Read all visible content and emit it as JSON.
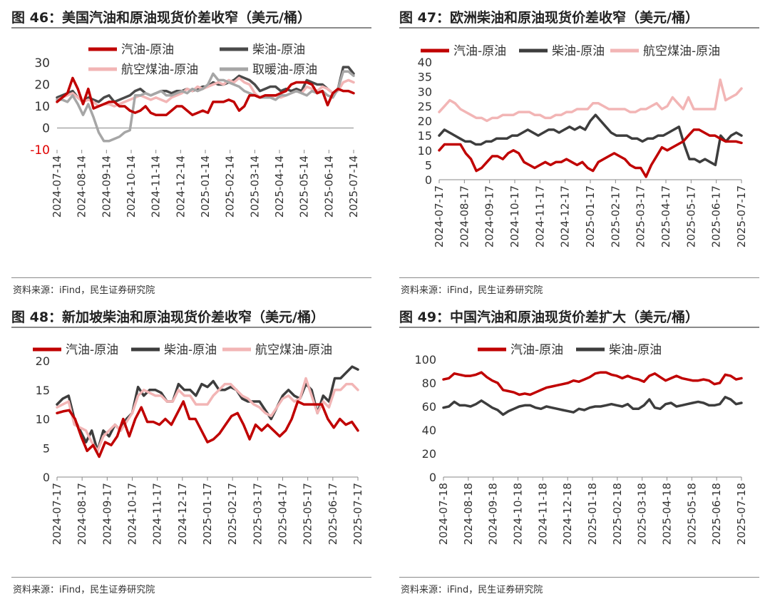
{
  "source_text": "资料来源：iFind，民生证券研究院",
  "chart_data": [
    {
      "type": "line",
      "title": "图 46：美国汽油和原油现货价差收窄（美元/桶）",
      "ylim": [
        -10,
        30
      ],
      "yticks": [
        -10,
        0,
        10,
        20,
        30
      ],
      "red_negative_ticks": true,
      "x_tick_labels": [
        "2024-07-14",
        "2024-08-14",
        "2024-09-14",
        "2024-10-14",
        "2024-11-14",
        "2024-12-14",
        "2025-01-14",
        "2025-02-14",
        "2025-03-14",
        "2025-04-14",
        "2025-05-14",
        "2025-06-14",
        "2025-07-14"
      ],
      "legend": {
        "rows": [
          [
            0,
            1
          ],
          [
            2,
            3
          ]
        ]
      },
      "series": [
        {
          "name": "汽油-原油",
          "color": "#c00000",
          "values": [
            12,
            14,
            16,
            23,
            18,
            11,
            18,
            9,
            10,
            11,
            12,
            12,
            10,
            10,
            8,
            7,
            8,
            10,
            7,
            6,
            6,
            6,
            8,
            10,
            10,
            8,
            6,
            7,
            8,
            7,
            12,
            12,
            12,
            13,
            12,
            8,
            10,
            15,
            15,
            14,
            15,
            15,
            15,
            16,
            17,
            20,
            21,
            21,
            21,
            20,
            16,
            17,
            10.5,
            16,
            18,
            17,
            17,
            16
          ]
        },
        {
          "name": "柴油-原油",
          "color": "#4a4a4a",
          "values": [
            14,
            15,
            16,
            17,
            14,
            12,
            14,
            13,
            12,
            14,
            15,
            12,
            13,
            14,
            15,
            17,
            18,
            16,
            15,
            16,
            17,
            17,
            16,
            17,
            17,
            18,
            17,
            18,
            19,
            19,
            21,
            20,
            20,
            21,
            22,
            24,
            23,
            22,
            20,
            17,
            18,
            19,
            19,
            17,
            18,
            17,
            18,
            17,
            22,
            21,
            20,
            20,
            18,
            16,
            18,
            28,
            28,
            25
          ]
        },
        {
          "name": "航空煤油-原油",
          "color": "#f2b5b5",
          "values": [
            13,
            14,
            15,
            16,
            14,
            12,
            13,
            12,
            10,
            11,
            11,
            10,
            11,
            12,
            13,
            14,
            15,
            14,
            13,
            14,
            13,
            12,
            14,
            15,
            16,
            18,
            17,
            19,
            18,
            19,
            20,
            21,
            20,
            22,
            21,
            23,
            21,
            20,
            16,
            14,
            14,
            14,
            15,
            14,
            15,
            16,
            17,
            16,
            19,
            18,
            17,
            19,
            18,
            16,
            17,
            21,
            22,
            21
          ]
        },
        {
          "name": "取暖油-原油",
          "color": "#a6a6a6",
          "values": [
            13,
            13,
            12,
            15,
            11,
            6,
            11,
            5,
            -2,
            -6,
            -6,
            -5,
            -4,
            -2,
            -1,
            15,
            15,
            16,
            15,
            16,
            17,
            15,
            15,
            16,
            17,
            16,
            18,
            17,
            18,
            20,
            25,
            22,
            22,
            21,
            20,
            19,
            17,
            16,
            15,
            14,
            14,
            14,
            13,
            15,
            15,
            16,
            17,
            16,
            15,
            17,
            16,
            17,
            15,
            14,
            18,
            26,
            26,
            24
          ]
        }
      ]
    },
    {
      "type": "line",
      "title": "图 47：欧洲柴油和原油现货价差收窄（美元/桶）",
      "ylim": [
        0,
        40
      ],
      "yticks": [
        0,
        5,
        10,
        15,
        20,
        25,
        30,
        35,
        40
      ],
      "x_tick_labels": [
        "2024-07-17",
        "2024-08-17",
        "2024-09-17",
        "2024-10-17",
        "2024-11-17",
        "2024-12-17",
        "2025-01-17",
        "2025-02-17",
        "2025-03-17",
        "2025-04-17",
        "2025-05-17",
        "2025-06-17",
        "2025-07-17"
      ],
      "legend": {
        "rows": [
          [
            0,
            1,
            2
          ]
        ]
      },
      "series": [
        {
          "name": "汽油-原油",
          "color": "#c00000",
          "values": [
            10,
            12,
            12,
            12,
            12,
            9,
            7,
            3,
            4,
            6,
            8,
            8,
            7,
            9,
            10,
            9,
            6,
            5,
            4,
            5,
            6,
            5,
            6,
            6,
            7,
            6,
            5,
            6,
            4,
            3,
            6,
            7,
            8,
            9,
            8,
            7,
            5,
            4,
            4,
            1,
            5,
            8,
            11,
            10,
            11,
            12,
            13,
            15,
            17,
            17,
            16,
            15,
            15,
            14,
            13,
            13,
            13,
            12.5
          ]
        },
        {
          "name": "柴油-原油",
          "color": "#3d3d3d",
          "values": [
            15,
            17,
            16,
            15,
            14,
            13,
            13,
            12,
            12,
            13,
            13,
            14,
            14,
            14,
            15,
            15,
            16,
            17,
            16,
            15,
            16,
            17,
            17,
            16,
            17,
            18,
            17,
            18,
            17,
            20,
            22,
            20,
            18,
            16,
            15,
            15,
            15,
            14,
            14,
            13,
            14,
            14,
            15,
            15,
            16,
            17,
            18,
            12,
            7,
            7,
            6,
            7,
            6,
            5,
            15,
            13,
            15,
            16,
            15
          ]
        },
        {
          "name": "航空煤油-原油",
          "color": "#f2b5b5",
          "values": [
            23,
            25,
            27,
            26,
            24,
            23,
            22,
            21,
            21,
            20,
            21,
            21,
            22,
            22,
            22,
            23,
            23,
            23,
            22,
            22,
            21,
            21,
            22,
            22,
            23,
            23,
            24,
            24,
            24,
            26,
            26,
            25,
            24,
            24,
            24,
            24,
            23,
            23,
            24,
            24,
            25,
            26,
            24,
            25,
            28,
            26,
            24,
            28,
            24,
            24,
            24,
            24,
            24,
            34,
            27,
            28,
            29,
            31
          ]
        }
      ]
    },
    {
      "type": "line",
      "title": "图 48：新加坡柴油和原油现货价差收窄（美元/桶）",
      "ylim": [
        0,
        20
      ],
      "yticks": [
        0,
        5,
        10,
        15,
        20
      ],
      "x_tick_labels": [
        "2024-07-17",
        "2024-08-17",
        "2024-09-17",
        "2024-10-17",
        "2024-11-17",
        "2024-12-17",
        "2025-01-17",
        "2025-02-17",
        "2025-03-17",
        "2025-04-17",
        "2025-05-17",
        "2025-06-17",
        "2025-07-17"
      ],
      "legend": {
        "rows": [
          [
            0,
            1,
            2
          ]
        ]
      },
      "series": [
        {
          "name": "汽油-原油",
          "color": "#c00000",
          "values": [
            11,
            11.3,
            11.5,
            10,
            7,
            4.5,
            5.5,
            3.5,
            6,
            5.5,
            7,
            10,
            7,
            10,
            12,
            9.5,
            9.5,
            9,
            10,
            9,
            11,
            13,
            10,
            10,
            8,
            6,
            6.5,
            7.5,
            9,
            10.5,
            11,
            9,
            6.5,
            9,
            8,
            9,
            8,
            7,
            8,
            10,
            13,
            12.5,
            12.5,
            12.5,
            12.5,
            10,
            8.5,
            10,
            9,
            9.5,
            8
          ]
        },
        {
          "name": "柴油-原油",
          "color": "#3d3d3d",
          "values": [
            12.5,
            13.5,
            14,
            10,
            8,
            6,
            8,
            4.5,
            8,
            7,
            9,
            8,
            10,
            11,
            15.5,
            14,
            15,
            15,
            14.5,
            13,
            13,
            16,
            15,
            15,
            14,
            16,
            15.5,
            16.5,
            15,
            15,
            15.5,
            15,
            13.5,
            13,
            13,
            13,
            11.5,
            10,
            12,
            14,
            15,
            14,
            13.5,
            16,
            15,
            11,
            14,
            13,
            17,
            17,
            18,
            19,
            18.5
          ]
        },
        {
          "name": "航空煤油-原油",
          "color": "#f2b5b5",
          "values": [
            12,
            12.5,
            13,
            9,
            8.5,
            8,
            6,
            4.5,
            7,
            8,
            9,
            8,
            9.5,
            11,
            14,
            15,
            14.5,
            14,
            14,
            13,
            13,
            15,
            14,
            14,
            12.5,
            12.5,
            12.5,
            14,
            15,
            16,
            16,
            15,
            14,
            13.5,
            12.5,
            12,
            11,
            10.5,
            12,
            13.5,
            14,
            13,
            13.5,
            17,
            14,
            11,
            13,
            12,
            15,
            15,
            16,
            16,
            15
          ]
        }
      ]
    },
    {
      "type": "line",
      "title": "图 49：中国汽油和原油现货价差扩大（美元/桶）",
      "ylim": [
        0,
        100
      ],
      "yticks": [
        0,
        20,
        40,
        60,
        80,
        100
      ],
      "x_tick_labels": [
        "2024-07-18",
        "2024-08-18",
        "2024-09-18",
        "2024-10-18",
        "2024-11-18",
        "2024-12-18",
        "2025-01-18",
        "2025-02-18",
        "2025-03-18",
        "2025-04-18",
        "2025-05-18",
        "2025-06-18",
        "2025-07-18"
      ],
      "legend": {
        "rows": [
          [
            0,
            1
          ]
        ]
      },
      "series": [
        {
          "name": "汽油-原油",
          "color": "#c00000",
          "values": [
            83,
            84,
            88,
            87,
            86,
            86,
            87,
            89,
            85,
            82,
            80,
            74,
            73,
            72,
            70,
            71,
            70,
            72,
            74,
            76,
            77,
            78,
            79,
            80,
            82,
            81,
            83,
            85,
            88,
            89,
            89,
            87,
            86,
            84,
            86,
            84,
            83,
            81,
            86,
            88,
            85,
            82,
            84,
            86,
            84,
            83,
            82,
            82,
            83,
            82,
            79,
            80,
            87,
            86,
            83,
            84
          ]
        },
        {
          "name": "柴油-原油",
          "color": "#3d3d3d",
          "values": [
            59,
            60,
            64,
            61,
            61,
            60,
            62,
            65,
            62,
            59,
            57,
            53,
            56,
            58,
            60,
            61,
            61,
            59,
            58,
            60,
            59,
            58,
            57,
            56,
            55,
            58,
            57,
            59,
            60,
            60,
            61,
            62,
            61,
            60,
            62,
            58,
            58,
            61,
            66,
            59,
            58,
            62,
            63,
            60,
            61,
            62,
            63,
            64,
            63,
            61,
            61,
            62,
            68,
            66,
            62,
            63
          ]
        }
      ]
    }
  ]
}
